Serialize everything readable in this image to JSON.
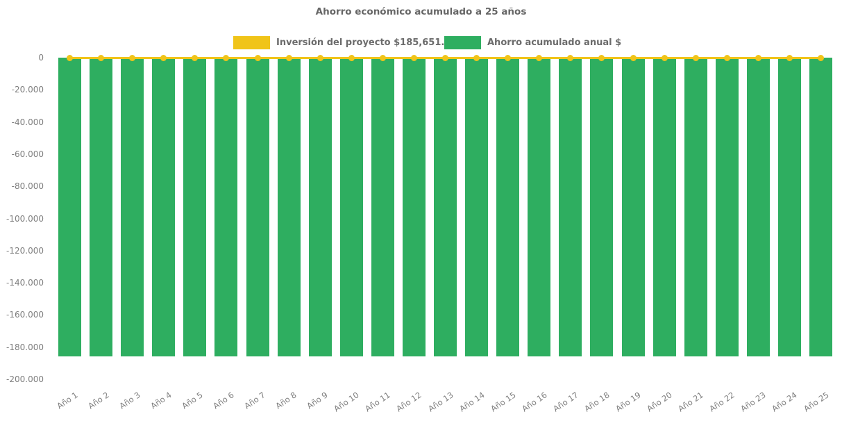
{
  "title": "Ahorro económico acumulado a 25 años",
  "legend": {
    "items": [
      {
        "id": "investment",
        "label": "Inversión del proyecto $185,651.96",
        "color": "#F0C419"
      },
      {
        "id": "savings",
        "label": "Ahorro acumulado anual $",
        "color": "#2EAE60"
      }
    ]
  },
  "colors": {
    "bar_green": "#2EAE60",
    "line_yellow": "#F0C419",
    "title_text": "#666666",
    "axis_text": "#7e7e7e",
    "background": "#ffffff"
  },
  "chart_data": {
    "type": "bar",
    "title": "Ahorro económico acumulado a 25 años",
    "xlabel": "",
    "ylabel": "",
    "categories": [
      "Año 1",
      "Año 2",
      "Año 3",
      "Año 4",
      "Año 5",
      "Año 6",
      "Año 7",
      "Año 8",
      "Año 9",
      "Año 10",
      "Año 11",
      "Año 12",
      "Año 13",
      "Año 14",
      "Año 15",
      "Año 16",
      "Año 17",
      "Año 18",
      "Año 19",
      "Año 20",
      "Año 21",
      "Año 22",
      "Año 23",
      "Año 24",
      "Año 25"
    ],
    "series": [
      {
        "name": "Inversión del proyecto $185,651.96",
        "type": "line",
        "color": "#F0C419",
        "marker": "circle",
        "values": [
          0,
          0,
          0,
          0,
          0,
          0,
          0,
          0,
          0,
          0,
          0,
          0,
          0,
          0,
          0,
          0,
          0,
          0,
          0,
          0,
          0,
          0,
          0,
          0,
          0
        ]
      },
      {
        "name": "Ahorro acumulado anual $",
        "type": "bar",
        "color": "#2EAE60",
        "values": [
          -185651.96,
          -185651.96,
          -185651.96,
          -185651.96,
          -185651.96,
          -185651.96,
          -185651.96,
          -185651.96,
          -185651.96,
          -185651.96,
          -185651.96,
          -185651.96,
          -185651.96,
          -185651.96,
          -185651.96,
          -185651.96,
          -185651.96,
          -185651.96,
          -185651.96,
          -185651.96,
          -185651.96,
          -185651.96,
          -185651.96,
          -185651.96,
          -185651.96
        ]
      }
    ],
    "ylim": [
      -200000,
      0
    ],
    "ytick_values": [
      0,
      -20000,
      -40000,
      -60000,
      -80000,
      -100000,
      -120000,
      -140000,
      -160000,
      -180000,
      -200000
    ],
    "ytick_labels": [
      "0",
      "-20.000",
      "-40.000",
      "-60.000",
      "-80.000",
      "-100.000",
      "-120.000",
      "-140.000",
      "-160.000",
      "-180.000",
      "-200.000"
    ],
    "grid": false,
    "legend_position": "top",
    "x_tick_rotation_deg": -34
  }
}
